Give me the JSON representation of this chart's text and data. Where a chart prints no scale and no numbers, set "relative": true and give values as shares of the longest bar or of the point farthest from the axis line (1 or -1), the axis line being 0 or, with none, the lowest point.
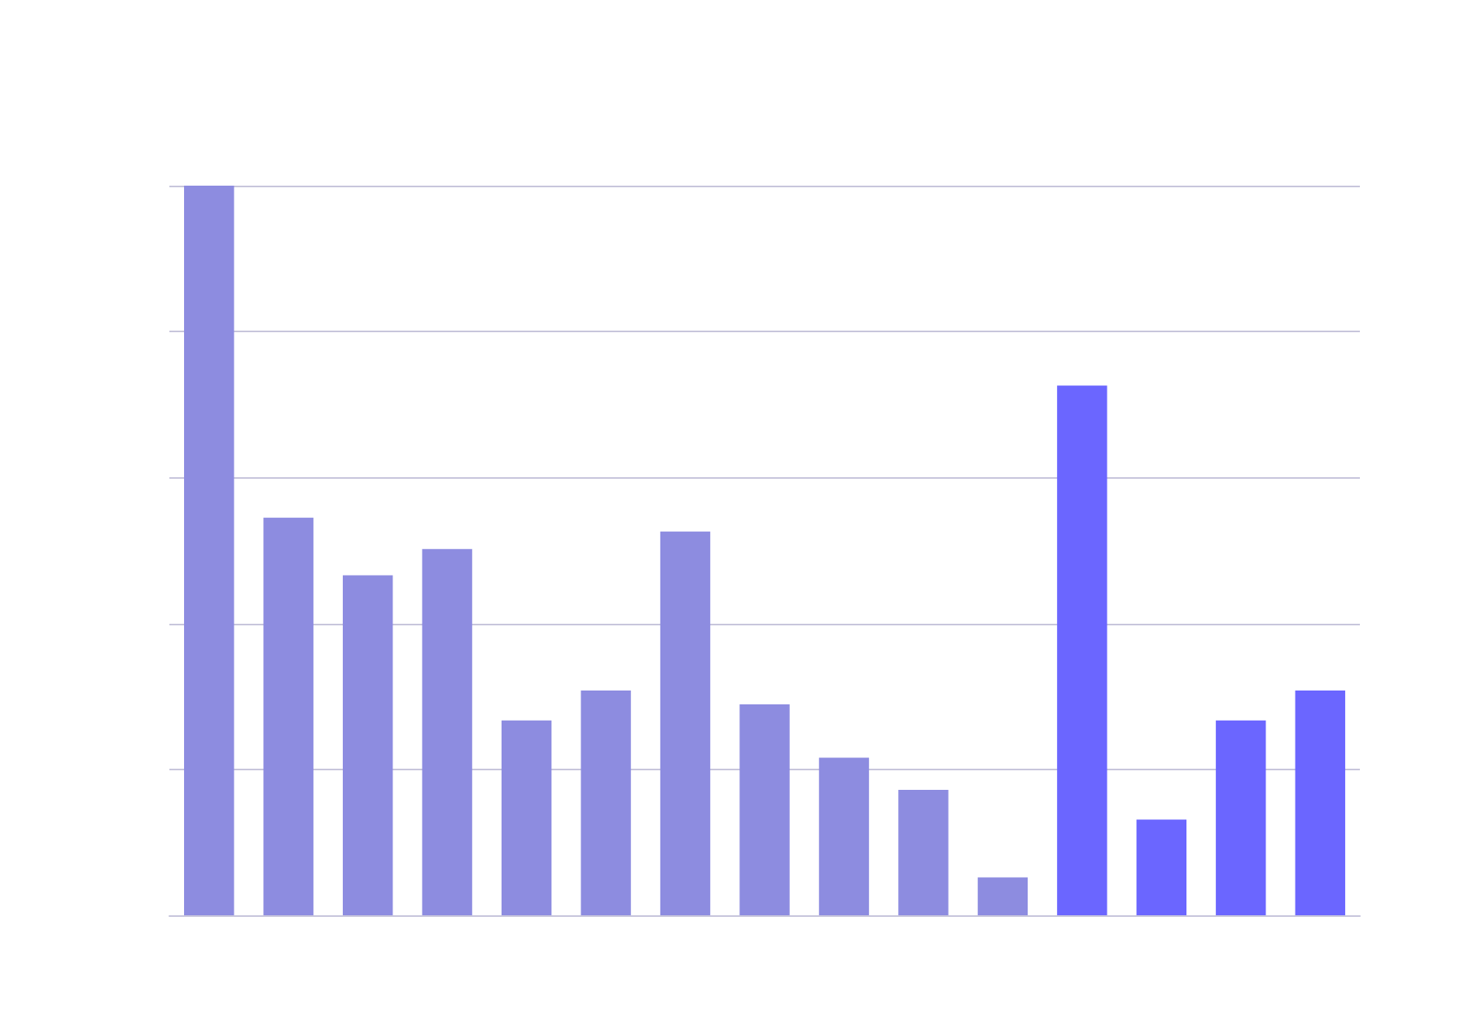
{
  "chart_data": {
    "type": "bar",
    "relative": true,
    "grid": "y",
    "categories": [
      null,
      null,
      null,
      null,
      null,
      null,
      null,
      null,
      null,
      null,
      null,
      null,
      null,
      null,
      null
    ],
    "values": [
      1,
      0.545,
      0.466,
      0.502,
      0.267,
      0.308,
      0.526,
      0.289,
      0.216,
      0.172,
      0.052,
      0.726,
      0.131,
      0.267,
      0.308
    ],
    "colors": [
      "#8d8ce0",
      "#8d8ce0",
      "#8d8ce0",
      "#8d8ce0",
      "#8d8ce0",
      "#8d8ce0",
      "#8d8ce0",
      "#8d8ce0",
      "#8d8ce0",
      "#8d8ce0",
      "#8d8ce0",
      "#6b66ff",
      "#6b66ff",
      "#6b66ff",
      "#6b66ff"
    ]
  }
}
